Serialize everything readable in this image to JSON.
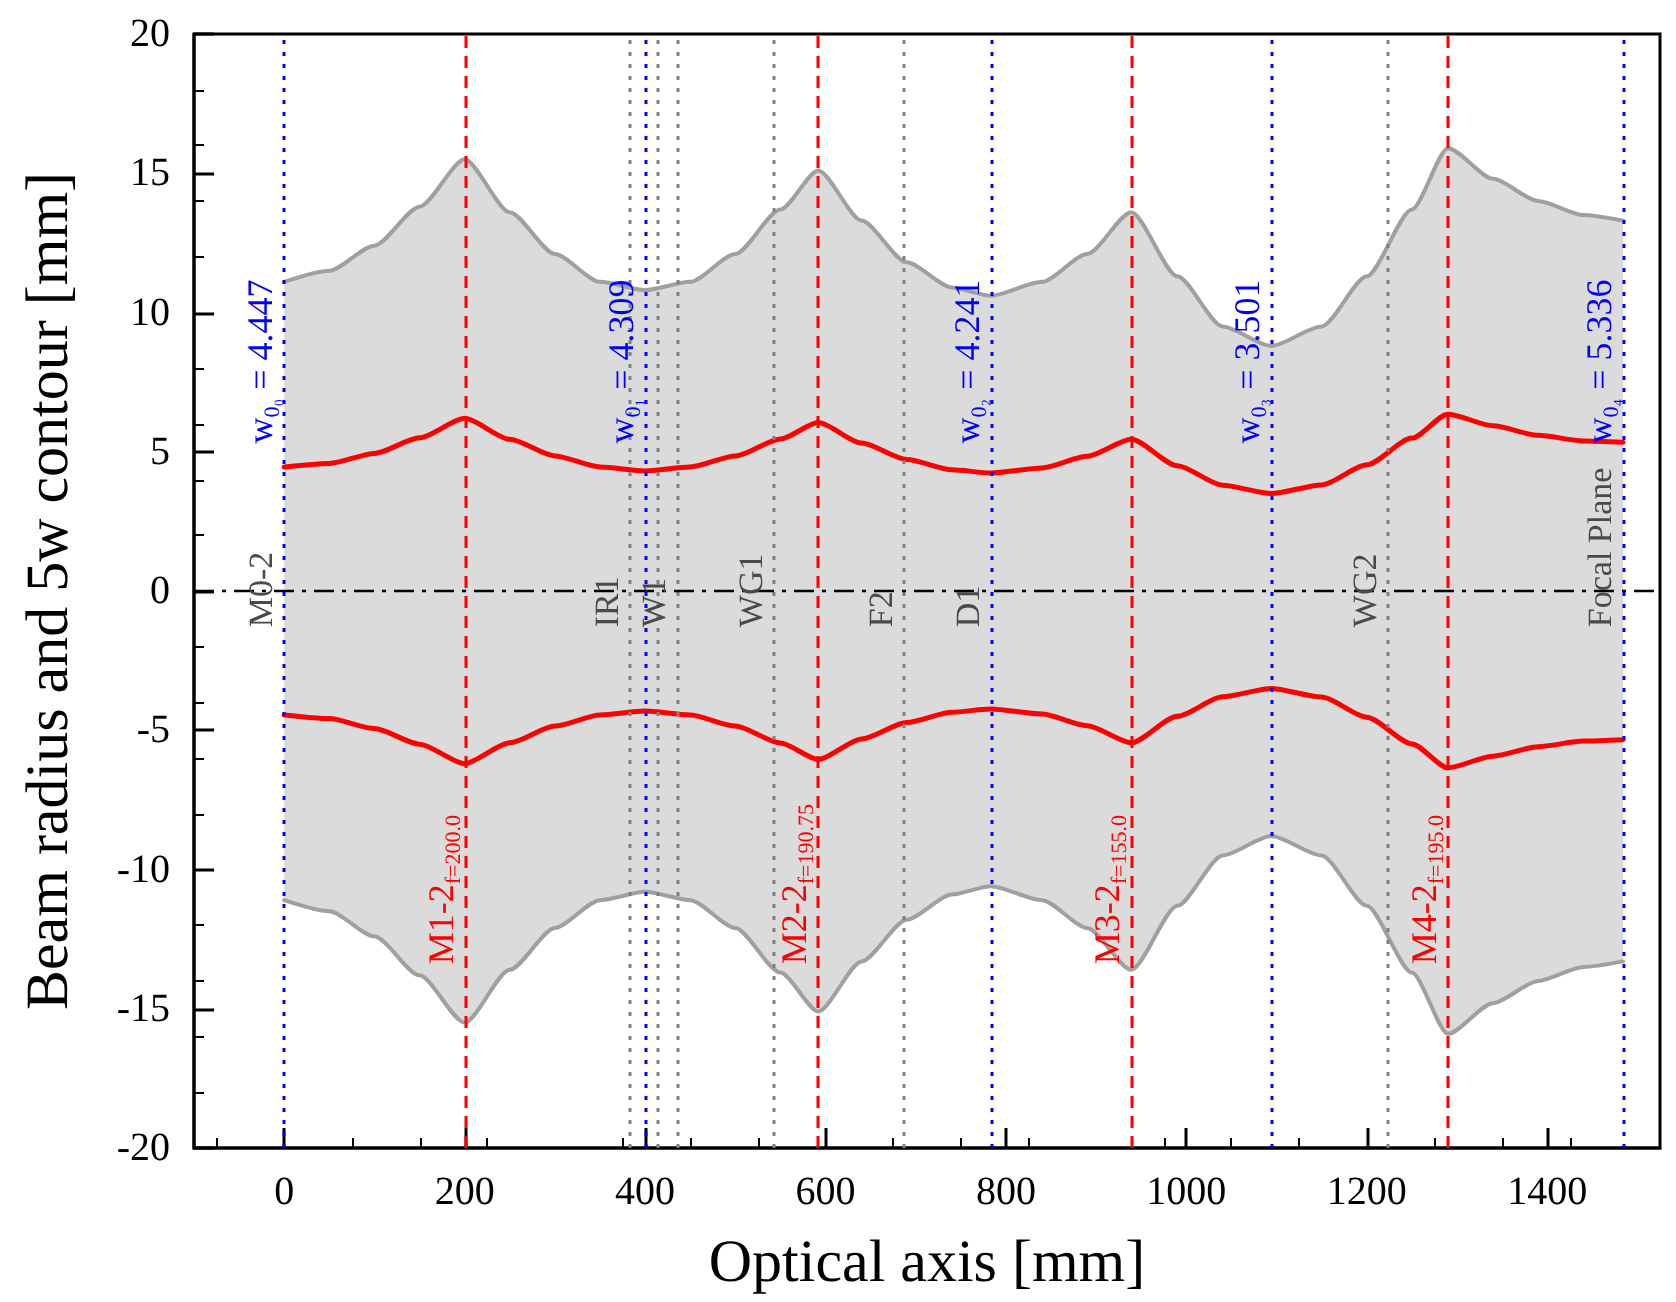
{
  "chart_data": {
    "type": "line",
    "xlabel": "Optical axis [mm]",
    "ylabel": "Beam radius and 5w contour [mm]",
    "x": [
      0,
      50,
      100,
      150,
      200,
      250,
      300,
      350,
      400,
      450,
      500,
      550,
      592,
      640,
      690,
      740,
      783,
      840,
      890,
      939,
      990,
      1040,
      1094,
      1150,
      1200,
      1250,
      1290,
      1340,
      1390,
      1440,
      1484
    ],
    "series": [
      {
        "type": "area",
        "color": "#a0a0a0",
        "values": [
          11.1,
          11.5,
          12.4,
          13.8,
          15.5,
          13.6,
          12.1,
          11.1,
          10.8,
          11.1,
          12.1,
          13.7,
          15.1,
          13.3,
          11.8,
          10.9,
          10.6,
          11.1,
          12.1,
          13.6,
          11.3,
          9.5,
          8.8,
          9.5,
          11.3,
          13.7,
          15.9,
          14.8,
          14.0,
          13.5,
          13.3
        ]
      },
      {
        "type": "area",
        "color": "#a0a0a0",
        "values": [
          -11.1,
          -11.5,
          -12.4,
          -13.8,
          -15.5,
          -13.6,
          -12.1,
          -11.1,
          -10.8,
          -11.1,
          -12.1,
          -13.7,
          -15.1,
          -13.3,
          -11.8,
          -10.9,
          -10.6,
          -11.1,
          -12.1,
          -13.6,
          -11.3,
          -9.5,
          -8.8,
          -9.5,
          -11.3,
          -13.7,
          -15.9,
          -14.8,
          -14.0,
          -13.5,
          -13.3
        ]
      },
      {
        "color": "#ff0000",
        "values": [
          4.45,
          4.58,
          4.94,
          5.5,
          6.2,
          5.45,
          4.85,
          4.45,
          4.31,
          4.45,
          4.85,
          5.46,
          6.05,
          5.31,
          4.72,
          4.35,
          4.24,
          4.42,
          4.84,
          5.45,
          4.5,
          3.8,
          3.5,
          3.81,
          4.53,
          5.49,
          6.35,
          5.93,
          5.59,
          5.39,
          5.34
        ]
      },
      {
        "color": "#ff0000",
        "values": [
          -4.45,
          -4.58,
          -4.94,
          -5.5,
          -6.2,
          -5.45,
          -4.85,
          -4.45,
          -4.31,
          -4.45,
          -4.85,
          -5.46,
          -6.05,
          -5.31,
          -4.72,
          -4.35,
          -4.24,
          -4.42,
          -4.84,
          -5.45,
          -4.5,
          -3.8,
          -3.5,
          -3.81,
          -4.53,
          -5.49,
          -6.35,
          -5.93,
          -5.59,
          -5.39,
          -5.34
        ]
      }
    ],
    "xlim": [
      -100,
      1525
    ],
    "xticks": [
      0,
      200,
      400,
      600,
      800,
      1000,
      1200,
      1400
    ],
    "ylim": [
      -20,
      20
    ],
    "yticks": [
      -20,
      -15,
      -10,
      -5,
      0,
      5,
      10,
      15,
      20
    ],
    "grid": false,
    "marker": "none",
    "line_style": "solid",
    "annotations": [
      {
        "text": "w$_{0₀}$ = 4.447",
        "x": 0,
        "y": 5.3
      },
      {
        "text": "w$_{0₁}$ = 4.309",
        "x": 400,
        "y": 5.3
      },
      {
        "text": "w$_{0₂}$ = 4.241",
        "x": 783,
        "y": 5.3
      },
      {
        "text": "w$_{0₃}$ = 3.501",
        "x": 1094,
        "y": 5.3
      },
      {
        "text": "w$_{0₄}$ = 5.336",
        "x": 1484,
        "y": 5.3
      },
      {
        "text": "M1-2$_{f=200.0}$",
        "x": 200,
        "y": -13.4
      },
      {
        "text": "M2-2$_{f=190.75}$",
        "x": 592,
        "y": -13.4
      },
      {
        "text": "M3-2$_{f=155.0}$",
        "x": 939,
        "y": -13.4
      },
      {
        "text": "M4-2$_{f=195.0}$",
        "x": 1290,
        "y": -13.4
      }
    ],
    "ref_lines": [
      {
        "axis": "x",
        "value": 0,
        "label": "M0-2",
        "color": "#0000ff",
        "line_style": "dotted"
      },
      {
        "axis": "x",
        "value": 400,
        "color": "#0000ff",
        "line_style": "dotted"
      },
      {
        "axis": "x",
        "value": 783,
        "label": "D1",
        "color": "#0000ff",
        "line_style": "dotted"
      },
      {
        "axis": "x",
        "value": 1094,
        "color": "#0000ff",
        "line_style": "dotted"
      },
      {
        "axis": "x",
        "value": 1484,
        "label": "Focal Plane",
        "color": "#0000ff",
        "line_style": "dotted"
      },
      {
        "axis": "x",
        "value": 200,
        "color": "#ff0000",
        "line_style": "dashed"
      },
      {
        "axis": "x",
        "value": 592,
        "color": "#ff0000",
        "line_style": "dashed"
      },
      {
        "axis": "x",
        "value": 939,
        "color": "#ff0000",
        "line_style": "dashed"
      },
      {
        "axis": "x",
        "value": 1290,
        "color": "#ff0000",
        "line_style": "dashed"
      },
      {
        "axis": "x",
        "value": 383,
        "label": "IR1",
        "color": "#808080",
        "line_style": "dotted"
      },
      {
        "axis": "x",
        "value": 413,
        "color": "#808080",
        "line_style": "dotted"
      },
      {
        "axis": "x",
        "value": 435,
        "label": "W1",
        "color": "#808080",
        "line_style": "dotted"
      },
      {
        "axis": "x",
        "value": 543,
        "label": "WG1",
        "color": "#808080",
        "line_style": "dotted"
      },
      {
        "axis": "x",
        "value": 687,
        "label": "F2",
        "color": "#808080",
        "line_style": "dotted"
      },
      {
        "axis": "x",
        "value": 1224,
        "label": "WG2",
        "color": "#808080",
        "line_style": "dotted"
      },
      {
        "axis": "y",
        "value": 0,
        "color": "#000000",
        "line_style": "dashed"
      }
    ]
  }
}
